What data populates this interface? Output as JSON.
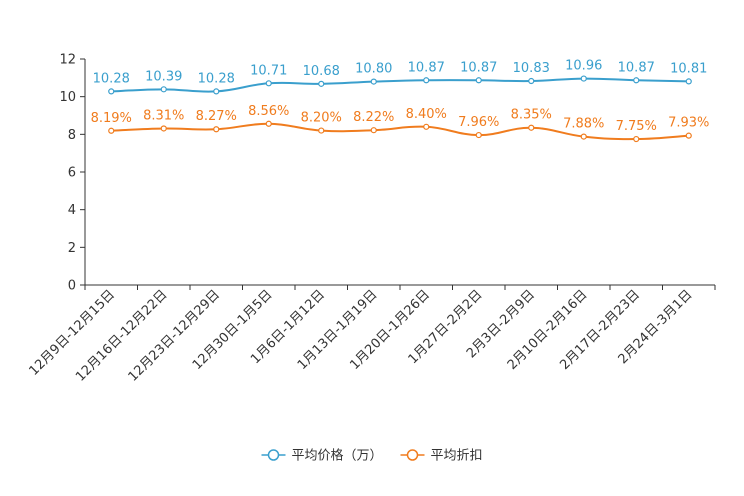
{
  "chart_data": {
    "type": "line",
    "title": "",
    "xlabel": "",
    "ylabel": "",
    "ylim": [
      0,
      12
    ],
    "yticks": [
      0,
      2,
      4,
      6,
      8,
      10,
      12
    ],
    "grid": false,
    "legend_position": "bottom-center",
    "categories": [
      "12月9日-12月15日",
      "12月16日-12月22日",
      "12月23日-12月29日",
      "12月30日-1月5日",
      "1月6日-1月12日",
      "1月13日-1月19日",
      "1月20日-1月26日",
      "1月27日-2月2日",
      "2月3日-2月9日",
      "2月10日-2月16日",
      "2月17日-2月23日",
      "2月24日-3月1日"
    ],
    "series": [
      {
        "name": "平均价格（万）",
        "color": "#3a9fcd",
        "values": [
          10.28,
          10.39,
          10.28,
          10.71,
          10.68,
          10.8,
          10.87,
          10.87,
          10.83,
          10.96,
          10.87,
          10.81
        ],
        "labels": [
          "10.28",
          "10.39",
          "10.28",
          "10.71",
          "10.68",
          "10.80",
          "10.87",
          "10.87",
          "10.83",
          "10.96",
          "10.87",
          "10.81"
        ]
      },
      {
        "name": "平均折扣",
        "color": "#f07c1e",
        "values": [
          8.19,
          8.31,
          8.27,
          8.56,
          8.2,
          8.22,
          8.4,
          7.96,
          8.35,
          7.88,
          7.75,
          7.93
        ],
        "labels": [
          "8.19%",
          "8.31%",
          "8.27%",
          "8.56%",
          "8.20%",
          "8.22%",
          "8.40%",
          "7.96%",
          "8.35%",
          "7.88%",
          "7.75%",
          "7.93%"
        ]
      }
    ]
  }
}
